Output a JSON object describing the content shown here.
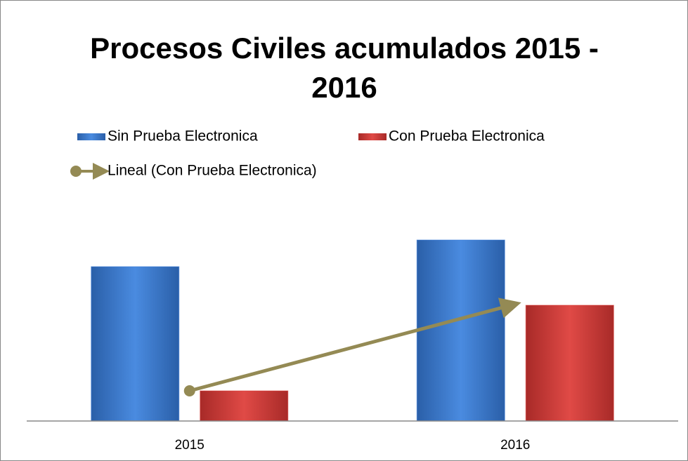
{
  "chart_data": {
    "type": "bar",
    "title": [
      "Procesos Civiles acumulados 2015 -",
      "2016"
    ],
    "categories": [
      "2015",
      "2016"
    ],
    "series": [
      {
        "name": "Sin Prueba Electronica",
        "color": "#3c7dd9",
        "values": [
          220,
          258
        ]
      },
      {
        "name": "Con Prueba Electronica",
        "color": "#d9413c",
        "values": [
          43,
          165
        ]
      }
    ],
    "trendline": {
      "name": "Lineal (Con Prueba Electronica)",
      "color": "#948a54",
      "series": 1
    },
    "ylim": [
      0,
      300
    ]
  }
}
